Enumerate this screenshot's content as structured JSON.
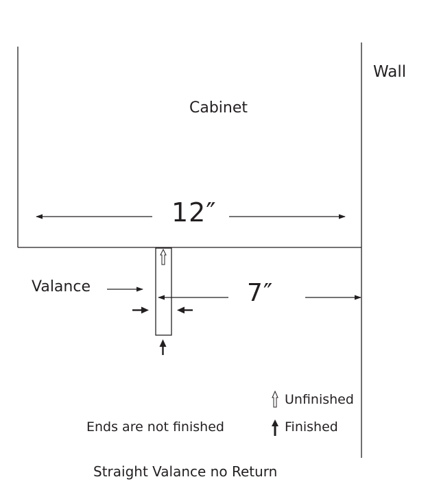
{
  "labels": {
    "wall": "Wall",
    "cabinet": "Cabinet",
    "width_dim": "12″",
    "valance": "Valance",
    "offset_dim": "7″",
    "unfinished": "Unfinished",
    "finished": "Finished",
    "note": "Ends are not finished",
    "caption": "Straight Valance no Return"
  },
  "colors": {
    "line": "#231f20",
    "background": "#ffffff"
  }
}
